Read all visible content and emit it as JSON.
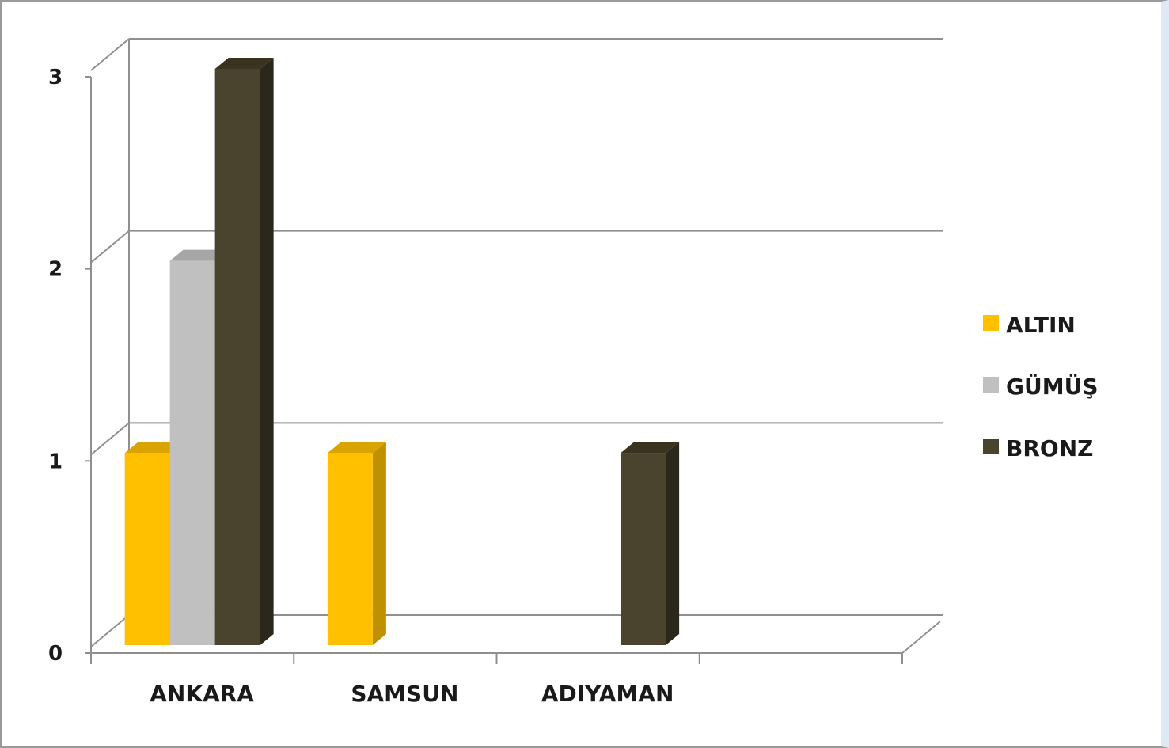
{
  "chart_data": {
    "type": "bar",
    "style": "3d-clustered-column",
    "categories": [
      "ANKARA",
      "SAMSUN",
      "ADIYAMAN",
      ""
    ],
    "series": [
      {
        "name": "ALTIN",
        "values": [
          1,
          1,
          0,
          0
        ],
        "color": "#FFC000",
        "side_color": "#BF9000",
        "top_color": "#D9A300"
      },
      {
        "name": "GÜMÜŞ",
        "values": [
          2,
          0,
          0,
          0
        ],
        "color": "#C0C0C0",
        "side_color": "#8C8C8C",
        "top_color": "#A6A6A6"
      },
      {
        "name": "BRONZ",
        "values": [
          3,
          0,
          1,
          0
        ],
        "color": "#4A432D",
        "side_color": "#2B271A",
        "top_color": "#39331F"
      }
    ],
    "y_ticks": [
      "0",
      "1",
      "2",
      "3"
    ],
    "ylim": [
      0,
      3
    ],
    "grid": true,
    "legend_position": "right",
    "title": "",
    "xlabel": "",
    "ylabel": ""
  }
}
